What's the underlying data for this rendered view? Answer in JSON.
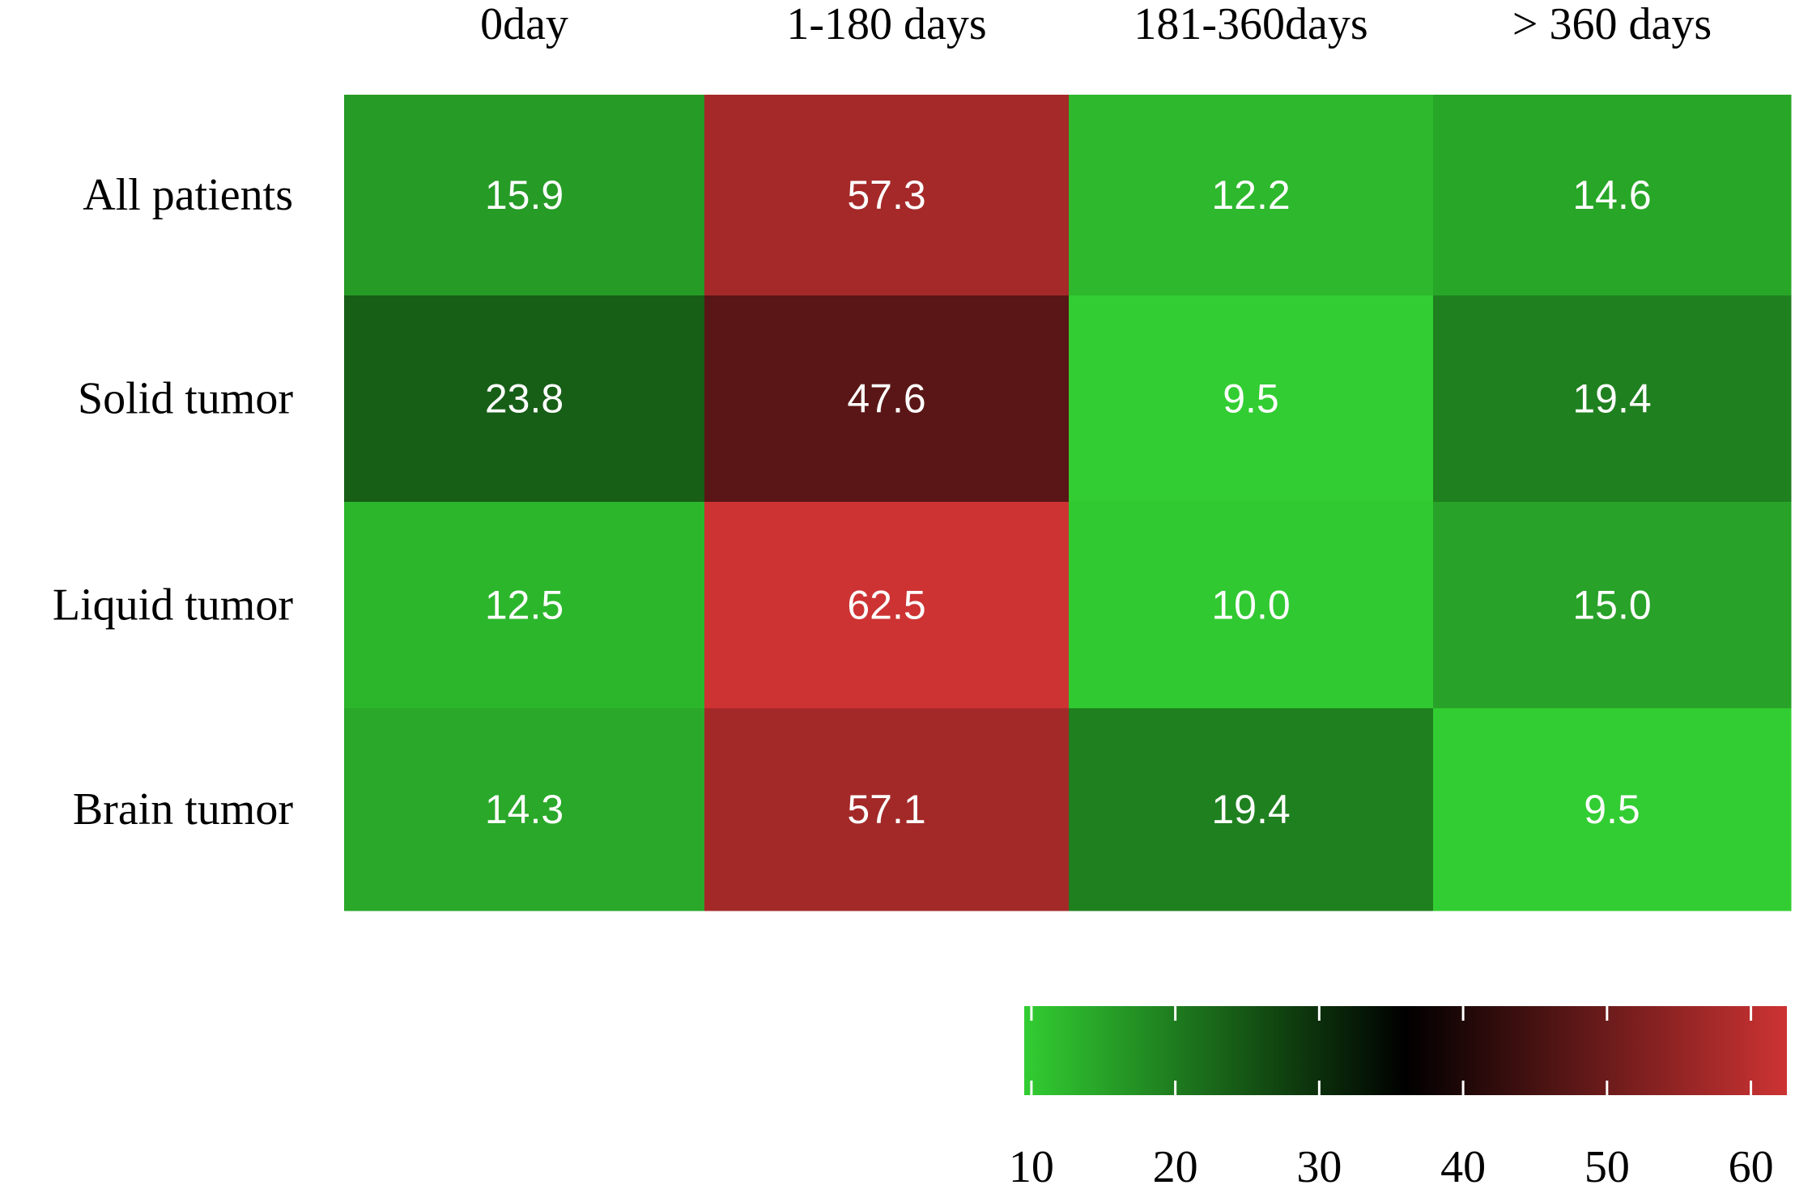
{
  "chart_data": {
    "type": "heatmap",
    "columns": [
      "0day",
      "1-180 days",
      "181-360days",
      "> 360 days"
    ],
    "rows": [
      "All patients",
      "Solid tumor",
      "Liquid tumor",
      "Brain tumor"
    ],
    "values": [
      [
        15.9,
        57.3,
        12.2,
        14.6
      ],
      [
        23.8,
        47.6,
        9.5,
        19.4
      ],
      [
        12.5,
        62.5,
        10.0,
        15.0
      ],
      [
        14.3,
        57.1,
        19.4,
        9.5
      ]
    ],
    "value_labels": [
      [
        "15.9",
        "57.3",
        "12.2",
        "14.6"
      ],
      [
        "23.8",
        "47.6",
        "9.5",
        "19.4"
      ],
      [
        "12.5",
        "62.5",
        "10.0",
        "15.0"
      ],
      [
        "14.3",
        "57.1",
        "19.4",
        "9.5"
      ]
    ],
    "colorbar": {
      "range": [
        9.5,
        62.5
      ],
      "ticks": [
        10,
        20,
        30,
        40,
        50,
        60
      ],
      "tick_labels": [
        "10",
        "20",
        "30",
        "40",
        "50",
        "60"
      ],
      "colors": [
        "#32cd32",
        "#000000",
        "#cd3333"
      ],
      "placement": "bottom-right"
    },
    "title": "",
    "xlabel": "",
    "ylabel": ""
  }
}
